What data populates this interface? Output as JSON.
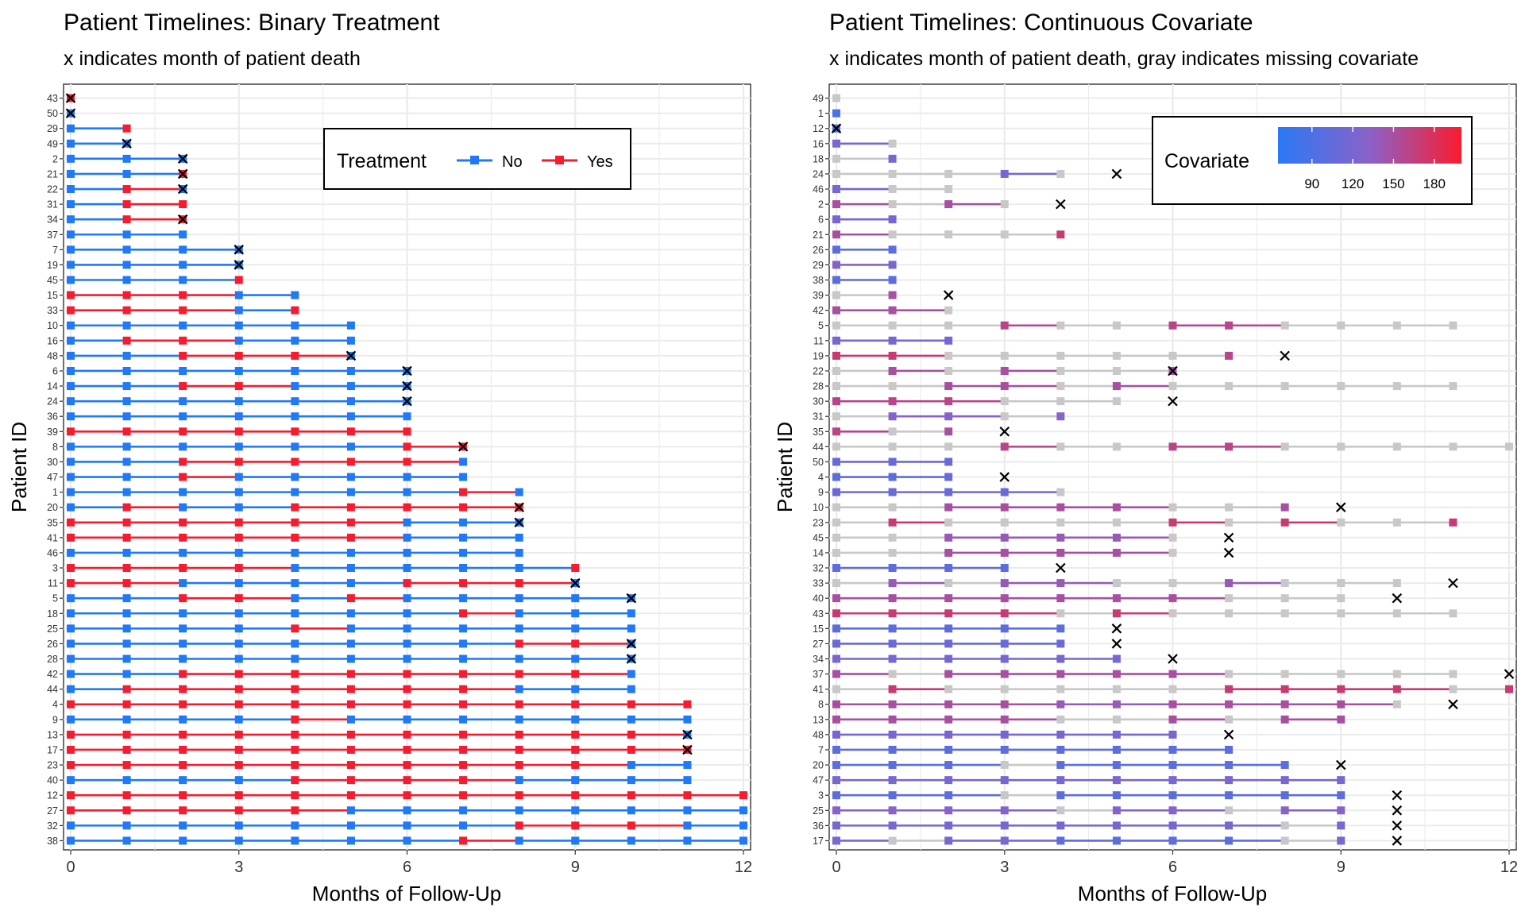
{
  "chart_data": [
    {
      "type": "timeline",
      "title": "Patient Timelines: Binary Treatment",
      "subtitle": "x indicates month of patient death",
      "xlabel": "Months of Follow-Up",
      "ylabel": "Patient ID",
      "xlim": [
        0,
        12
      ],
      "x_ticks": [
        "0",
        "3",
        "6",
        "9",
        "12"
      ],
      "legend": {
        "title": "Treatment",
        "position": "top-right",
        "entries": [
          {
            "label": "No",
            "color": "#2079F6"
          },
          {
            "label": "Yes",
            "color": "#F61C2F"
          }
        ]
      },
      "patients": [
        {
          "id": "43",
          "t": "1",
          "death": 0
        },
        {
          "id": "50",
          "t": "0",
          "death": 0
        },
        {
          "id": "29",
          "t": "01"
        },
        {
          "id": "49",
          "t": "00",
          "death": 1
        },
        {
          "id": "2",
          "t": "000",
          "death": 2
        },
        {
          "id": "21",
          "t": "001",
          "death": 2
        },
        {
          "id": "22",
          "t": "010",
          "death": 2
        },
        {
          "id": "31",
          "t": "011"
        },
        {
          "id": "34",
          "t": "011",
          "death": 2
        },
        {
          "id": "37",
          "t": "000"
        },
        {
          "id": "7",
          "t": "0000",
          "death": 3
        },
        {
          "id": "19",
          "t": "0000",
          "death": 3
        },
        {
          "id": "45",
          "t": "0001"
        },
        {
          "id": "15",
          "t": "11100"
        },
        {
          "id": "33",
          "t": "11101"
        },
        {
          "id": "10",
          "t": "000000"
        },
        {
          "id": "16",
          "t": "011000"
        },
        {
          "id": "48",
          "t": "001110",
          "death": 5
        },
        {
          "id": "6",
          "t": "0000000",
          "death": 6
        },
        {
          "id": "14",
          "t": "0011000",
          "death": 6
        },
        {
          "id": "24",
          "t": "0000000",
          "death": 6
        },
        {
          "id": "36",
          "t": "0000000"
        },
        {
          "id": "39",
          "t": "1111111"
        },
        {
          "id": "8",
          "t": "00000011",
          "death": 7
        },
        {
          "id": "30",
          "t": "00111110"
        },
        {
          "id": "47",
          "t": "00100000"
        },
        {
          "id": "1",
          "t": "000000010"
        },
        {
          "id": "20",
          "t": "010011111",
          "death": 8
        },
        {
          "id": "35",
          "t": "111111000",
          "death": 8
        },
        {
          "id": "41",
          "t": "111111000"
        },
        {
          "id": "46",
          "t": "000000000"
        },
        {
          "id": "3",
          "t": "1111000001"
        },
        {
          "id": "11",
          "t": "1100001110",
          "death": 9
        },
        {
          "id": "5",
          "t": "00110100000",
          "death": 10
        },
        {
          "id": "18",
          "t": "00000001000"
        },
        {
          "id": "25",
          "t": "00001000000"
        },
        {
          "id": "26",
          "t": "00000000110",
          "death": 10
        },
        {
          "id": "28",
          "t": "00000000000",
          "death": 10
        },
        {
          "id": "42",
          "t": "00111111110"
        },
        {
          "id": "44",
          "t": "01111111000"
        },
        {
          "id": "4",
          "t": "111111111111"
        },
        {
          "id": "9",
          "t": "000010000000"
        },
        {
          "id": "13",
          "t": "111111111110",
          "death": 11
        },
        {
          "id": "17",
          "t": "111111111111",
          "death": 11
        },
        {
          "id": "23",
          "t": "111111111100"
        },
        {
          "id": "40",
          "t": "000011110000"
        },
        {
          "id": "12",
          "t": "1111111111111"
        },
        {
          "id": "27",
          "t": "1111100000000"
        },
        {
          "id": "32",
          "t": "0000000011100"
        },
        {
          "id": "38",
          "t": "0000000100000"
        }
      ]
    },
    {
      "type": "timeline",
      "title": "Patient Timelines: Continuous Covariate",
      "subtitle": "x indicates month of patient death, gray indicates missing covariate",
      "xlabel": "Months of Follow-Up",
      "ylabel": "Patient ID",
      "xlim": [
        0,
        12
      ],
      "x_ticks": [
        "0",
        "3",
        "6",
        "9",
        "12"
      ],
      "legend": {
        "title": "Covariate",
        "position": "top-right",
        "range": [
          65,
          200
        ],
        "ticks": [
          "90",
          "120",
          "150",
          "180"
        ],
        "low_color": "#2A79F6",
        "high_color": "#FA1C2E"
      },
      "missing_color": "#C8C8C8",
      "patients": [
        {
          "id": "49",
          "c": [
            null
          ]
        },
        {
          "id": "1",
          "c": [
            90
          ]
        },
        {
          "id": "12",
          "c": [
            90
          ],
          "death": 0
        },
        {
          "id": "16",
          "c": [
            120,
            null
          ]
        },
        {
          "id": "18",
          "c": [
            null,
            120
          ]
        },
        {
          "id": "24",
          "c": [
            null,
            null,
            null,
            120,
            null
          ],
          "death": 5
        },
        {
          "id": "46",
          "c": [
            120,
            null,
            null
          ]
        },
        {
          "id": "2",
          "c": [
            150,
            null,
            150,
            null
          ],
          "death": 4
        },
        {
          "id": "6",
          "c": [
            120,
            120
          ]
        },
        {
          "id": "21",
          "c": [
            150,
            null,
            null,
            null,
            170
          ]
        },
        {
          "id": "26",
          "c": [
            100,
            100
          ]
        },
        {
          "id": "29",
          "c": [
            130,
            120
          ]
        },
        {
          "id": "38",
          "c": [
            100,
            100
          ]
        },
        {
          "id": "39",
          "c": [
            null,
            150
          ],
          "death": 2
        },
        {
          "id": "42",
          "c": [
            150,
            150,
            null
          ]
        },
        {
          "id": "5",
          "c": [
            null,
            null,
            null,
            160,
            null,
            null,
            160,
            160,
            null,
            null,
            null,
            null
          ]
        },
        {
          "id": "11",
          "c": [
            120,
            120,
            120
          ]
        },
        {
          "id": "19",
          "c": [
            170,
            170,
            null,
            null,
            null,
            null,
            null,
            160
          ],
          "death": 8
        },
        {
          "id": "22",
          "c": [
            null,
            150,
            null,
            150,
            null,
            null,
            150
          ],
          "death": 6
        },
        {
          "id": "28",
          "c": [
            null,
            null,
            150,
            150,
            null,
            150,
            null,
            null,
            null,
            null,
            null,
            null
          ]
        },
        {
          "id": "30",
          "c": [
            160,
            160,
            160,
            null,
            null,
            null
          ],
          "death": 6
        },
        {
          "id": "31",
          "c": [
            null,
            130,
            130,
            null,
            130
          ]
        },
        {
          "id": "35",
          "c": [
            160,
            null,
            150
          ],
          "death": 3
        },
        {
          "id": "44",
          "c": [
            null,
            null,
            null,
            160,
            null,
            null,
            160,
            160,
            null,
            null,
            null,
            null,
            null
          ]
        },
        {
          "id": "50",
          "c": [
            110,
            110,
            110
          ]
        },
        {
          "id": "4",
          "c": [
            100,
            100,
            110
          ],
          "death": 3
        },
        {
          "id": "9",
          "c": [
            110,
            110,
            110,
            110,
            null
          ]
        },
        {
          "id": "10",
          "c": [
            null,
            null,
            150,
            150,
            150,
            150,
            null,
            null,
            150
          ],
          "death": 9
        },
        {
          "id": "23",
          "c": [
            null,
            170,
            null,
            null,
            null,
            null,
            170,
            null,
            170,
            null,
            null,
            170
          ]
        },
        {
          "id": "45",
          "c": [
            null,
            null,
            140,
            140,
            140,
            140,
            null
          ],
          "death": 7
        },
        {
          "id": "14",
          "c": [
            null,
            null,
            150,
            150,
            150,
            150,
            null
          ],
          "death": 7
        },
        {
          "id": "32",
          "c": [
            100,
            100,
            100,
            100
          ],
          "death": 4
        },
        {
          "id": "33",
          "c": [
            null,
            140,
            null,
            140,
            140,
            null,
            null,
            140,
            null,
            null,
            null
          ],
          "death": 11
        },
        {
          "id": "40",
          "c": [
            150,
            150,
            150,
            150,
            150,
            150,
            150,
            null,
            null,
            null
          ],
          "death": 10
        },
        {
          "id": "43",
          "c": [
            170,
            170,
            170,
            170,
            null,
            170,
            null,
            null,
            null,
            null,
            null,
            null
          ]
        },
        {
          "id": "15",
          "c": [
            100,
            100,
            100,
            100,
            100
          ],
          "death": 5
        },
        {
          "id": "27",
          "c": [
            110,
            110,
            110,
            110,
            110
          ],
          "death": 5
        },
        {
          "id": "34",
          "c": [
            120,
            120,
            120,
            120,
            120,
            120
          ],
          "death": 6
        },
        {
          "id": "37",
          "c": [
            150,
            null,
            150,
            150,
            150,
            150,
            150,
            null,
            null,
            null,
            null,
            null
          ],
          "death": 12
        },
        {
          "id": "41",
          "c": [
            null,
            170,
            null,
            null,
            null,
            null,
            null,
            170,
            170,
            170,
            170,
            null,
            170
          ]
        },
        {
          "id": "8",
          "c": [
            150,
            150,
            150,
            150,
            140,
            140,
            150,
            150,
            150,
            150,
            null
          ],
          "death": 11
        },
        {
          "id": "13",
          "c": [
            150,
            150,
            150,
            150,
            null,
            null,
            150,
            null,
            150,
            150
          ]
        },
        {
          "id": "48",
          "c": [
            120,
            120,
            120,
            120,
            120,
            120,
            120
          ],
          "death": 7
        },
        {
          "id": "7",
          "c": [
            100,
            100,
            100,
            100,
            100,
            100,
            100,
            100
          ]
        },
        {
          "id": "20",
          "c": [
            100,
            100,
            100,
            null,
            100,
            100,
            100,
            100,
            100
          ],
          "death": 9
        },
        {
          "id": "47",
          "c": [
            120,
            120,
            120,
            120,
            120,
            120,
            120,
            120,
            120,
            120
          ]
        },
        {
          "id": "3",
          "c": [
            100,
            100,
            100,
            null,
            100,
            100,
            100,
            100,
            100,
            100
          ],
          "death": 10
        },
        {
          "id": "25",
          "c": [
            130,
            130,
            130,
            130,
            null,
            130,
            130,
            null,
            130,
            130
          ],
          "death": 10
        },
        {
          "id": "36",
          "c": [
            120,
            120,
            120,
            120,
            120,
            120,
            120,
            120,
            null,
            120
          ],
          "death": 10
        },
        {
          "id": "17",
          "c": [
            120,
            null,
            120,
            120,
            100,
            100,
            100,
            100,
            null,
            120
          ],
          "death": 10
        }
      ]
    }
  ]
}
